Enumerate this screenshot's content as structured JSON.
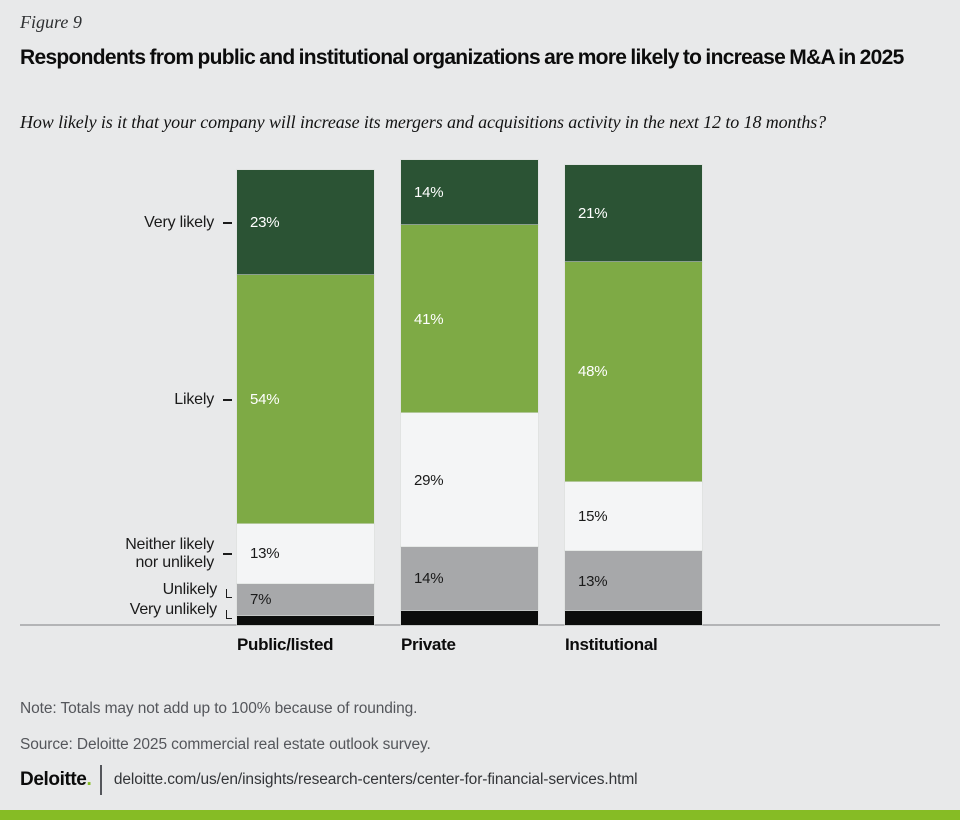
{
  "figure": {
    "label": "Figure 9",
    "title": "Respondents from public and institutional organizations are more likely to increase M&A in 2025",
    "question": "How likely is it that your company will increase its mergers and acquisitions activity in the next 12 to 18 months?"
  },
  "chart_data": {
    "type": "bar",
    "variant": "stacked-vertical",
    "unit": "%",
    "title": "Respondents from public and institutional organizations are more likely to increase M&A in 2025",
    "categories": [
      "Public/listed",
      "Private",
      "Institutional"
    ],
    "grid": false,
    "legend_position": "left-axis-labels",
    "axis_range_pct": [
      0,
      100
    ],
    "series": [
      {
        "name": "Very likely",
        "axis_lines": [
          "Very likely"
        ],
        "tick": "dash",
        "color": "#2B5334",
        "label_color": "#FFFFFF",
        "values": [
          23,
          14,
          21
        ],
        "value_labels": [
          "23%",
          "14%",
          "21%"
        ]
      },
      {
        "name": "Likely",
        "axis_lines": [
          "Likely"
        ],
        "tick": "dash",
        "color": "#7EAA45",
        "label_color": "#FFFFFF",
        "values": [
          54,
          41,
          48
        ],
        "value_labels": [
          "54%",
          "41%",
          "48%"
        ]
      },
      {
        "name": "Neither likely nor unlikely",
        "axis_lines": [
          "Neither likely",
          "nor unlikely"
        ],
        "tick": "dash",
        "color": "#F4F5F6",
        "label_color": "#1A1A1A",
        "values": [
          13,
          29,
          15
        ],
        "value_labels": [
          "13%",
          "29%",
          "15%"
        ]
      },
      {
        "name": "Unlikely",
        "axis_lines": [
          "Unlikely"
        ],
        "tick": "elbow",
        "color": "#A7A8AA",
        "label_color": "#1A1A1A",
        "values": [
          7,
          14,
          13
        ],
        "value_labels": [
          "7%",
          "14%",
          "13%"
        ]
      },
      {
        "name": "Very unlikely",
        "axis_lines": [
          "Very unlikely"
        ],
        "tick": "elbow",
        "color": "#0C0D0C",
        "label_color": "#FFFFFF",
        "values": [
          2,
          3,
          3
        ],
        "value_labels": [
          "",
          "",
          ""
        ],
        "values_estimated": true
      }
    ]
  },
  "note": "Note: Totals may not add up to 100% because of rounding.",
  "source": "Source: Deloitte 2025 commercial real estate outlook survey.",
  "footer": {
    "logo_text": "Deloitte",
    "logo_dot": ".",
    "url": "deloitte.com/us/en/insights/research-centers/center-for-financial-services.html"
  },
  "colors": {
    "background": "#E8E9EA",
    "accent_green": "#86BC25",
    "muted_text": "#54565B",
    "axis_line": "#B3B4B6"
  }
}
